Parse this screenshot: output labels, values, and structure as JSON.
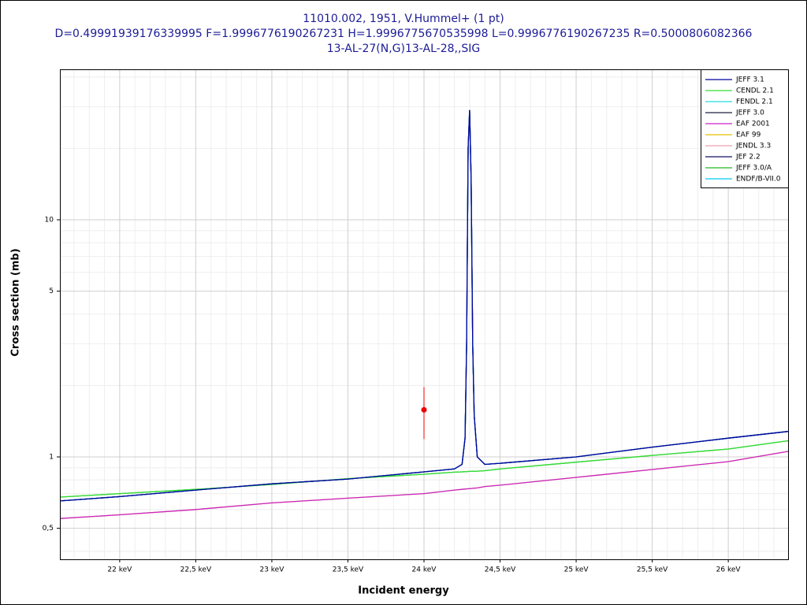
{
  "chart_data": {
    "type": "line",
    "title": "11010.002, 1951, V.Hummel+ (1 pt)",
    "subtitle": "D=0.49991939176339995 F=1.9996776190267231 H=1.9996775670535998 L=0.9996776190267235 R=0.5000806082366",
    "subtitle2": "13-AL-27(N,G)13-AL-28,,SIG",
    "x_label": "Incident energy",
    "y_label": "Cross section (mb)",
    "log_y": true,
    "grid": true,
    "legend": "top-right",
    "xlim": [
      21.607,
      26.393
    ],
    "ylim": [
      0.37,
      43.1
    ],
    "xticks": [
      {
        "value": 22,
        "label": "22 keV"
      },
      {
        "value": 22.5,
        "label": "22,5 keV"
      },
      {
        "value": 23,
        "label": "23 keV"
      },
      {
        "value": 23.5,
        "label": "23,5 keV"
      },
      {
        "value": 24,
        "label": "24 keV"
      },
      {
        "value": 24.5,
        "label": "24,5 keV"
      },
      {
        "value": 25,
        "label": "25 keV"
      },
      {
        "value": 25.5,
        "label": "25,5 keV"
      },
      {
        "value": 26,
        "label": "26 keV"
      }
    ],
    "yticks": [
      {
        "value": 0.5,
        "label": "0,5"
      },
      1,
      5,
      10
    ],
    "xminorticks": [
      21.7,
      21.8,
      21.9,
      22.1,
      22.2,
      22.3,
      22.4,
      22.6,
      22.7,
      22.8,
      22.9,
      23.1,
      23.2,
      23.3,
      23.4,
      23.6,
      23.7,
      23.8,
      23.9,
      24.1,
      24.2,
      24.3,
      24.4,
      24.6,
      24.7,
      24.8,
      24.9,
      25.1,
      25.2,
      25.3,
      25.4,
      25.6,
      25.7,
      25.8,
      25.9,
      26.1,
      26.2,
      26.3
    ],
    "yminorticks": [
      0.4,
      0.6,
      0.7,
      0.8,
      0.9,
      2,
      3,
      4,
      6,
      7,
      8,
      9,
      20,
      30,
      40
    ],
    "x": [
      21.607,
      22,
      22.5,
      23,
      23.5,
      24,
      24.2,
      24.25,
      24.27,
      24.28,
      24.29,
      24.3,
      24.31,
      24.32,
      24.33,
      24.35,
      24.4,
      24.5,
      25,
      25.5,
      26,
      26.393
    ],
    "series": [
      {
        "name": "JEFF 3.1",
        "color": "#0000a0",
        "values": [
          0.652,
          0.68,
          0.725,
          0.77,
          0.807,
          0.865,
          0.89,
          0.93,
          1.2,
          3,
          20,
          29,
          15,
          3,
          1.5,
          1.0,
          0.93,
          0.94,
          1.0,
          1.1,
          1.2,
          1.28
        ]
      },
      {
        "name": "CENDL 2.1",
        "color": "#33dd33",
        "values": [
          0.677,
          0.7,
          0.73,
          0.765,
          0.81,
          0.845,
          0.862,
          0.865,
          0.866,
          0.867,
          0.868,
          0.869,
          0.869,
          0.87,
          0.87,
          0.871,
          0.875,
          0.89,
          0.95,
          1.015,
          1.08,
          1.17
        ]
      },
      {
        "name": "FENDL 2.1",
        "color": "#22dddd",
        "values": [
          0.652,
          0.68,
          0.725,
          0.77,
          0.807,
          0.865,
          0.89,
          0.93,
          1.2,
          3,
          20,
          29,
          15,
          3,
          1.5,
          1.0,
          0.93,
          0.94,
          1.0,
          1.1,
          1.2,
          1.28
        ]
      },
      {
        "name": "JEFF 3.0",
        "color": "#202040",
        "values": [
          0.652,
          0.68,
          0.725,
          0.77,
          0.807,
          0.865,
          0.89,
          0.93,
          1.2,
          3,
          20,
          29,
          15,
          3,
          1.5,
          1.0,
          0.93,
          0.94,
          1.0,
          1.1,
          1.2,
          1.28
        ]
      },
      {
        "name": "EAF 2001",
        "color": "#cc22cc",
        "values": [
          0.55,
          0.57,
          0.6,
          0.64,
          0.67,
          0.7,
          0.725,
          0.73,
          0.732,
          0.733,
          0.734,
          0.735,
          0.736,
          0.737,
          0.738,
          0.74,
          0.75,
          0.76,
          0.82,
          0.885,
          0.955,
          1.055
        ]
      },
      {
        "name": "EAF 99",
        "color": "#e0c000",
        "values": [
          0.55,
          0.57,
          0.6,
          0.64,
          0.67,
          0.7,
          0.725,
          0.73,
          0.732,
          0.733,
          0.734,
          0.735,
          0.736,
          0.737,
          0.738,
          0.74,
          0.75,
          0.76,
          0.82,
          0.885,
          0.955,
          1.055
        ]
      },
      {
        "name": "JENDL 3.3",
        "color": "#f0a0b0",
        "values": [
          0.652,
          0.68,
          0.725,
          0.77,
          0.807,
          0.865,
          0.89,
          0.93,
          1.2,
          3,
          20,
          29,
          15,
          3,
          1.5,
          1.0,
          0.93,
          0.94,
          1.0,
          1.1,
          1.2,
          1.28
        ]
      },
      {
        "name": "JEF 2.2",
        "color": "#101060",
        "values": [
          0.652,
          0.68,
          0.725,
          0.77,
          0.807,
          0.865,
          0.89,
          0.93,
          1.2,
          3,
          20,
          29,
          15,
          3,
          1.5,
          1.0,
          0.93,
          0.94,
          1.0,
          1.1,
          1.2,
          1.28
        ]
      },
      {
        "name": "JEFF 3.0/A",
        "color": "#22bb22",
        "values": [
          0.677,
          0.7,
          0.73,
          0.765,
          0.81,
          0.845,
          0.862,
          0.865,
          0.866,
          0.867,
          0.868,
          0.869,
          0.869,
          0.87,
          0.87,
          0.871,
          0.875,
          0.89,
          0.95,
          1.015,
          1.08,
          1.17
        ]
      },
      {
        "name": "ENDF/B-VII.0",
        "color": "#00ccee",
        "values": [
          0.652,
          0.68,
          0.725,
          0.77,
          0.807,
          0.865,
          0.89,
          0.93,
          1.2,
          3,
          20,
          29,
          15,
          3,
          1.5,
          1.0,
          0.93,
          0.94,
          1.0,
          1.1,
          1.2,
          1.28
        ]
      }
    ],
    "points": {
      "color": "#ee0000",
      "x": [
        24
      ],
      "values": [
        1.58
      ],
      "errors": [
        0.39
      ]
    }
  }
}
